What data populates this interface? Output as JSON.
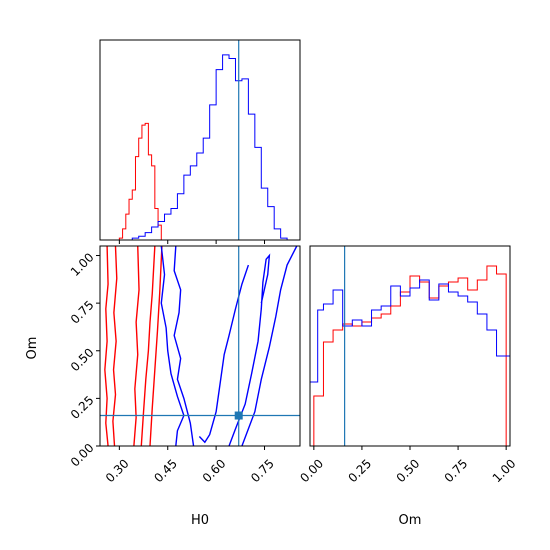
{
  "chart_data": {
    "type": "corner",
    "parameters": [
      "H0",
      "Om"
    ],
    "truth": {
      "H0": 0.67,
      "Om": 0.16
    },
    "colors": {
      "series_a": "#ff0000",
      "series_b": "#0000ff",
      "truth": "#1f77b4"
    },
    "hist_H0": {
      "xlim": [
        0.24,
        0.86
      ],
      "xticks": [
        "0.30",
        "0.45",
        "0.60",
        "0.75"
      ],
      "xtick_values": [
        0.3,
        0.45,
        0.6,
        0.75
      ],
      "series": [
        {
          "color": "#ff0000",
          "edges": [
            0.24,
            0.3,
            0.31,
            0.32,
            0.33,
            0.34,
            0.35,
            0.36,
            0.37,
            0.38,
            0.39,
            0.4,
            0.41,
            0.42,
            0.43,
            0.86
          ],
          "counts": [
            0,
            0.01,
            0.06,
            0.14,
            0.22,
            0.27,
            0.45,
            0.55,
            0.62,
            0.63,
            0.46,
            0.4,
            0.17,
            0.08,
            0.0
          ]
        },
        {
          "color": "#0000ff",
          "edges": [
            0.24,
            0.34,
            0.36,
            0.38,
            0.4,
            0.42,
            0.44,
            0.46,
            0.48,
            0.5,
            0.52,
            0.54,
            0.56,
            0.58,
            0.6,
            0.62,
            0.64,
            0.66,
            0.68,
            0.7,
            0.72,
            0.74,
            0.76,
            0.78,
            0.8,
            0.82,
            0.86
          ],
          "counts": [
            0,
            0.01,
            0.02,
            0.04,
            0.07,
            0.1,
            0.14,
            0.17,
            0.25,
            0.35,
            0.4,
            0.47,
            0.55,
            0.73,
            0.92,
            1.0,
            0.98,
            0.86,
            0.87,
            0.68,
            0.5,
            0.28,
            0.18,
            0.06,
            0.01,
            0.0
          ]
        }
      ]
    },
    "contour_H0_Om": {
      "xlim": [
        0.24,
        0.86
      ],
      "ylim": [
        0.0,
        1.05
      ],
      "xlabel": "H0",
      "ylabel": "Om",
      "xticks": [
        "0.30",
        "0.45",
        "0.60",
        "0.75"
      ],
      "xtick_values": [
        0.3,
        0.45,
        0.6,
        0.75
      ],
      "yticks": [
        "0.00",
        "0.25",
        "0.50",
        "0.75",
        "1.00"
      ],
      "ytick_values": [
        0.0,
        0.25,
        0.5,
        0.75,
        1.0
      ],
      "series": [
        {
          "color": "#ff0000",
          "contours": [
            [
              [
                0.265,
                0.0
              ],
              [
                0.258,
                0.12
              ],
              [
                0.262,
                0.25
              ],
              [
                0.255,
                0.4
              ],
              [
                0.262,
                0.55
              ],
              [
                0.258,
                0.72
              ],
              [
                0.265,
                0.85
              ],
              [
                0.262,
                1.05
              ]
            ],
            [
              [
                0.285,
                0.0
              ],
              [
                0.28,
                0.13
              ],
              [
                0.288,
                0.27
              ],
              [
                0.282,
                0.4
              ],
              [
                0.29,
                0.55
              ],
              [
                0.283,
                0.7
              ],
              [
                0.292,
                0.88
              ],
              [
                0.288,
                1.05
              ]
            ],
            [
              [
                0.345,
                0.0
              ],
              [
                0.352,
                0.15
              ],
              [
                0.348,
                0.3
              ],
              [
                0.357,
                0.48
              ],
              [
                0.352,
                0.65
              ],
              [
                0.361,
                0.82
              ],
              [
                0.357,
                1.05
              ]
            ],
            [
              [
                0.368,
                0.0
              ],
              [
                0.375,
                0.18
              ],
              [
                0.382,
                0.35
              ],
              [
                0.39,
                0.5
              ],
              [
                0.395,
                0.65
              ],
              [
                0.402,
                0.8
              ],
              [
                0.41,
                1.05
              ]
            ],
            [
              [
                0.395,
                0.0
              ],
              [
                0.402,
                0.2
              ],
              [
                0.41,
                0.4
              ],
              [
                0.418,
                0.6
              ],
              [
                0.425,
                0.8
              ],
              [
                0.432,
                1.05
              ]
            ]
          ]
        },
        {
          "color": "#0000ff",
          "contours": [
            [
              [
                0.43,
                1.05
              ],
              [
                0.44,
                0.9
              ],
              [
                0.43,
                0.75
              ],
              [
                0.445,
                0.62
              ],
              [
                0.45,
                0.5
              ],
              [
                0.46,
                0.38
              ],
              [
                0.48,
                0.26
              ],
              [
                0.5,
                0.16
              ],
              [
                0.48,
                0.08
              ],
              [
                0.475,
                0.0
              ]
            ],
            [
              [
                0.475,
                1.05
              ],
              [
                0.47,
                0.92
              ],
              [
                0.49,
                0.82
              ],
              [
                0.485,
                0.7
              ],
              [
                0.47,
                0.58
              ],
              [
                0.49,
                0.46
              ],
              [
                0.48,
                0.35
              ],
              [
                0.5,
                0.25
              ],
              [
                0.52,
                0.12
              ],
              [
                0.53,
                0.0
              ]
            ],
            [
              [
                0.548,
                0.05
              ],
              [
                0.565,
                0.02
              ],
              [
                0.58,
                0.06
              ],
              [
                0.6,
                0.18
              ],
              [
                0.61,
                0.3
              ],
              [
                0.625,
                0.48
              ],
              [
                0.64,
                0.58
              ],
              [
                0.66,
                0.72
              ],
              [
                0.68,
                0.85
              ],
              [
                0.7,
                0.95
              ]
            ],
            [
              [
                0.64,
                0.0
              ],
              [
                0.66,
                0.09
              ],
              [
                0.69,
                0.22
              ],
              [
                0.71,
                0.38
              ],
              [
                0.73,
                0.55
              ],
              [
                0.74,
                0.72
              ],
              [
                0.745,
                0.86
              ],
              [
                0.755,
                0.98
              ],
              [
                0.765,
                1.0
              ],
              [
                0.76,
                0.9
              ],
              [
                0.74,
                0.75
              ]
            ],
            [
              [
                0.68,
                0.0
              ],
              [
                0.72,
                0.18
              ],
              [
                0.74,
                0.35
              ],
              [
                0.765,
                0.52
              ],
              [
                0.785,
                0.68
              ],
              [
                0.8,
                0.82
              ],
              [
                0.82,
                0.95
              ],
              [
                0.85,
                1.05
              ]
            ]
          ]
        }
      ]
    },
    "hist_Om": {
      "xlim": [
        -0.02,
        1.02
      ],
      "xlabel": "Om",
      "xticks": [
        "0.00",
        "0.25",
        "0.50",
        "0.75",
        "1.00"
      ],
      "xtick_values": [
        0.0,
        0.25,
        0.5,
        0.75,
        1.0
      ],
      "series": [
        {
          "color": "#ff0000",
          "edges": [
            0.0,
            0.05,
            0.1,
            0.15,
            0.2,
            0.25,
            0.3,
            0.35,
            0.4,
            0.45,
            0.5,
            0.55,
            0.6,
            0.65,
            0.7,
            0.75,
            0.8,
            0.85,
            0.9,
            0.95,
            1.0
          ],
          "counts": [
            0.25,
            0.52,
            0.58,
            0.61,
            0.6,
            0.62,
            0.64,
            0.66,
            0.7,
            0.77,
            0.85,
            0.82,
            0.74,
            0.8,
            0.82,
            0.84,
            0.78,
            0.83,
            0.9,
            0.86
          ]
        },
        {
          "color": "#0000ff",
          "edges": [
            -0.02,
            0.02,
            0.05,
            0.1,
            0.15,
            0.2,
            0.25,
            0.3,
            0.35,
            0.4,
            0.45,
            0.5,
            0.55,
            0.6,
            0.65,
            0.7,
            0.75,
            0.8,
            0.85,
            0.9,
            0.95,
            1.0,
            1.02
          ],
          "counts": [
            0.32,
            0.68,
            0.71,
            0.78,
            0.6,
            0.63,
            0.6,
            0.68,
            0.7,
            0.8,
            0.75,
            0.79,
            0.83,
            0.73,
            0.81,
            0.77,
            0.75,
            0.72,
            0.66,
            0.58,
            0.45,
            0.45
          ]
        }
      ]
    }
  }
}
